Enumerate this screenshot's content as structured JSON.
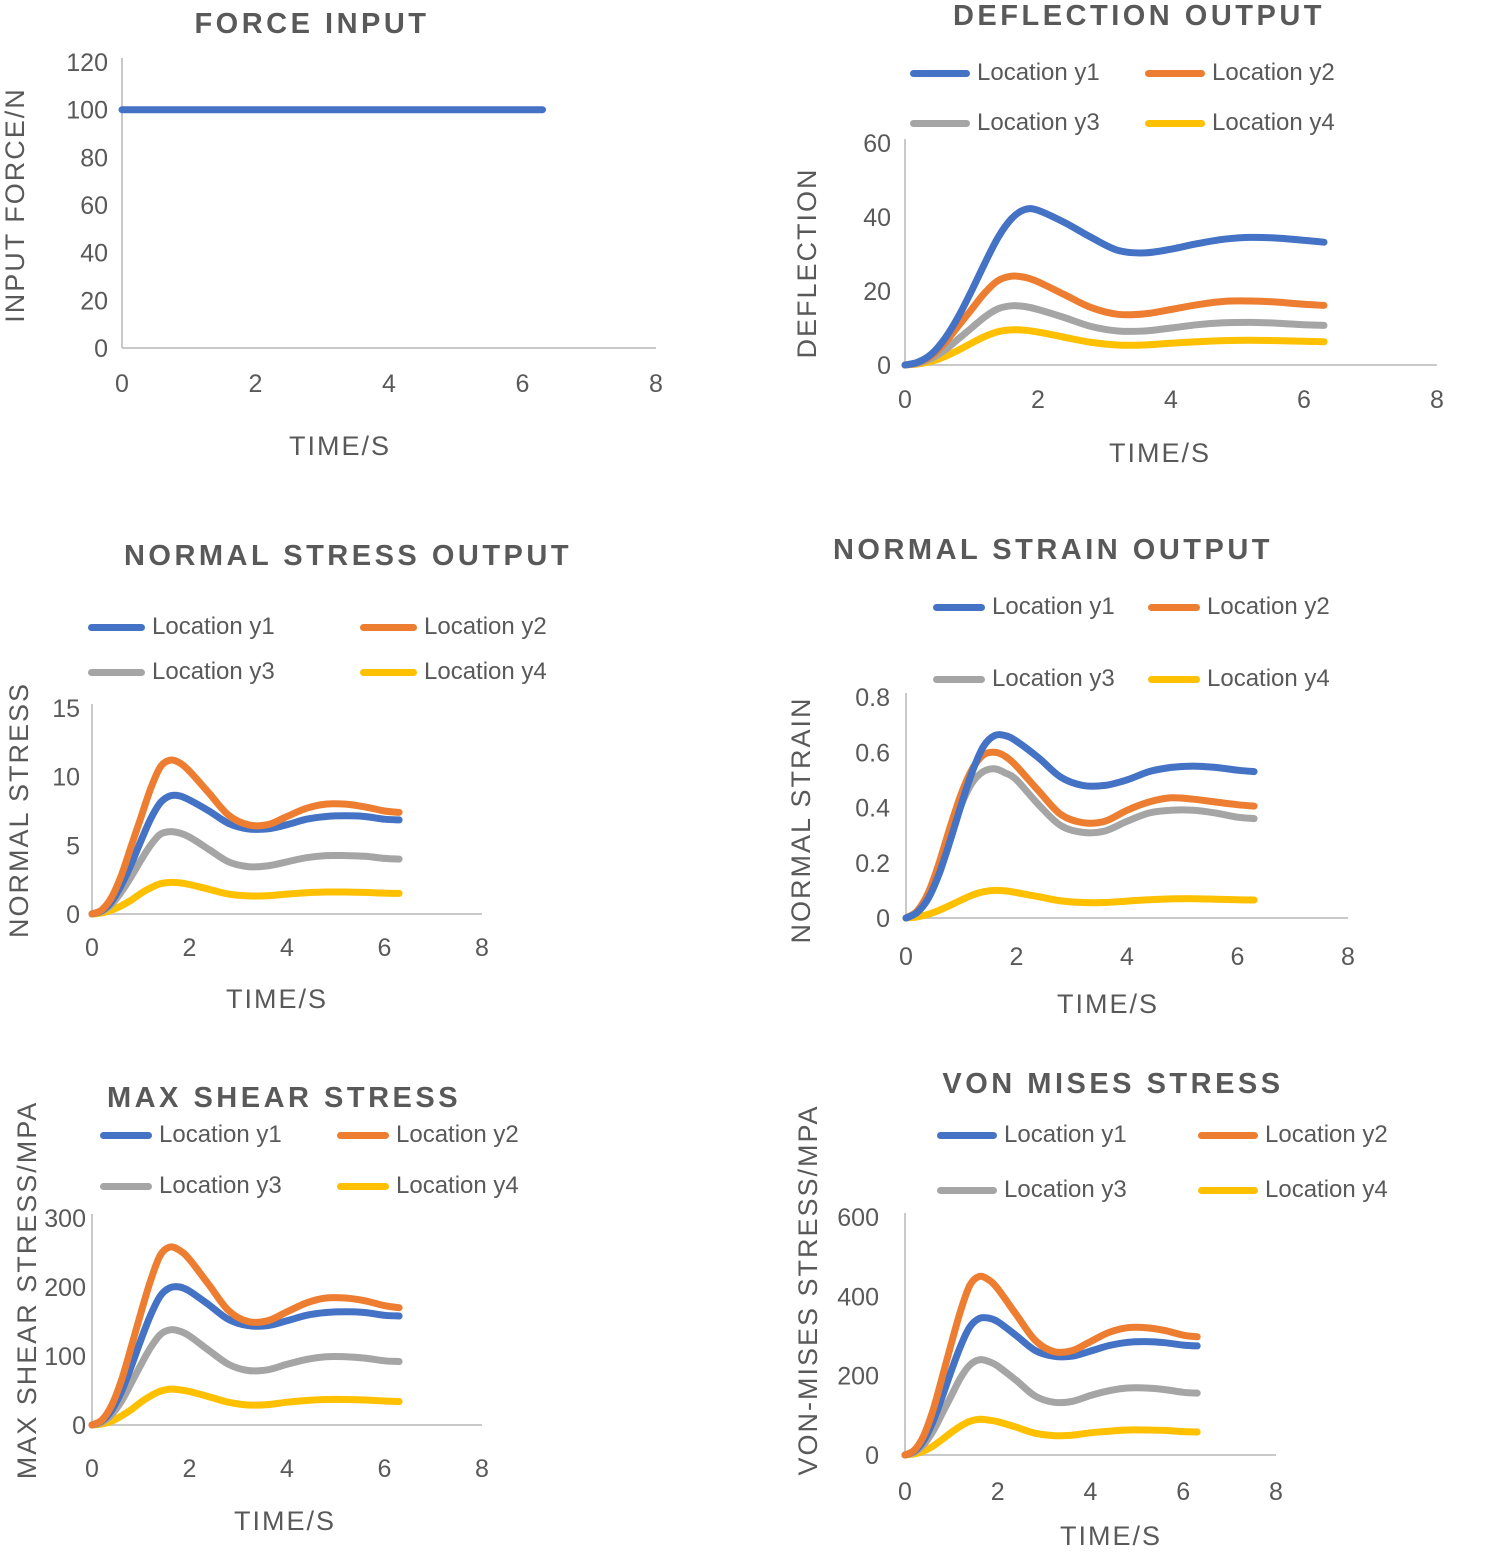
{
  "palette": {
    "series_blue": "#4472C4",
    "series_orange": "#ED7D31",
    "series_gray": "#A5A5A5",
    "series_yellow": "#FFC000",
    "text_gray": "#595959",
    "axis_line_gray": "#C9C9C9",
    "background": "#FFFFFF"
  },
  "chart_data": [
    {
      "type": "line",
      "title": "FORCE INPUT",
      "xlabel": "TIME/S",
      "ylabel": "INPUT FORCE/N",
      "xlim": [
        0,
        8
      ],
      "ylim": [
        0,
        120
      ],
      "xticks": [
        0,
        2,
        4,
        6,
        8
      ],
      "yticks": [
        0,
        20,
        40,
        60,
        80,
        100,
        120
      ],
      "grid": false,
      "legend": false,
      "x": [
        0,
        6.3
      ],
      "series": [
        {
          "name": "",
          "color": "#4472C4",
          "values": [
            100,
            100
          ]
        }
      ]
    },
    {
      "type": "line",
      "title": "DEFLECTION OUTPUT",
      "xlabel": "TIME/S",
      "ylabel": "DEFLECTION",
      "xlim": [
        0,
        8
      ],
      "ylim": [
        0,
        60
      ],
      "xticks": [
        0,
        2,
        4,
        6,
        8
      ],
      "yticks": [
        0,
        20,
        40,
        60
      ],
      "grid": false,
      "legend": true,
      "legend_position": "top",
      "x": [
        0,
        0.2,
        0.4,
        0.6,
        0.8,
        1,
        1.2,
        1.4,
        1.6,
        1.8,
        2,
        2.4,
        2.8,
        3.2,
        3.6,
        4,
        4.4,
        4.8,
        5.2,
        5.6,
        6,
        6.3
      ],
      "series": [
        {
          "name": "Location y1",
          "color": "#4472C4",
          "values": [
            0,
            0.8,
            3,
            7.2,
            13,
            20,
            27.5,
            34.5,
            39.5,
            42,
            41.8,
            38.5,
            34.5,
            31,
            30.3,
            31.3,
            32.8,
            34,
            34.5,
            34.3,
            33.7,
            33.2
          ]
        },
        {
          "name": "Location y2",
          "color": "#ED7D31",
          "values": [
            0,
            0.7,
            2.5,
            6,
            10.5,
            15,
            19.5,
            22.8,
            24,
            23.7,
            22.5,
            19,
            15.5,
            13.7,
            13.8,
            15,
            16.3,
            17.2,
            17.3,
            17,
            16.4,
            16.1
          ]
        },
        {
          "name": "Location y3",
          "color": "#A5A5A5",
          "values": [
            0,
            0.5,
            1.8,
            4,
            7,
            10,
            13,
            15.2,
            16,
            15.8,
            15,
            12.8,
            10.4,
            9.2,
            9.2,
            10,
            10.9,
            11.4,
            11.5,
            11.3,
            10.9,
            10.7
          ]
        },
        {
          "name": "Location y4",
          "color": "#FFC000",
          "values": [
            0,
            0.3,
            1,
            2.3,
            4,
            5.9,
            7.7,
            9,
            9.5,
            9.4,
            8.9,
            7.5,
            6.1,
            5.4,
            5.4,
            5.9,
            6.3,
            6.6,
            6.7,
            6.6,
            6.4,
            6.3
          ]
        }
      ]
    },
    {
      "type": "line",
      "title": "NORMAL STRESS OUTPUT",
      "xlabel": "TIME/S",
      "ylabel": "NORMAL STRESS",
      "xlim": [
        0,
        8
      ],
      "ylim": [
        0,
        15
      ],
      "xticks": [
        0,
        2,
        4,
        6,
        8
      ],
      "yticks": [
        0,
        5,
        10,
        15
      ],
      "grid": false,
      "legend": true,
      "legend_position": "top",
      "x": [
        0,
        0.2,
        0.4,
        0.6,
        0.8,
        1,
        1.2,
        1.4,
        1.6,
        1.8,
        2,
        2.4,
        2.8,
        3.2,
        3.6,
        4,
        4.4,
        4.8,
        5.2,
        5.6,
        6,
        6.3
      ],
      "series": [
        {
          "name": "Location y1",
          "color": "#4472C4",
          "values": [
            0,
            0.25,
            0.9,
            2.1,
            3.6,
            5.3,
            6.9,
            8.1,
            8.6,
            8.6,
            8.3,
            7.5,
            6.6,
            6.2,
            6.2,
            6.5,
            6.9,
            7.1,
            7.15,
            7.1,
            6.9,
            6.85
          ]
        },
        {
          "name": "Location y2",
          "color": "#ED7D31",
          "values": [
            0,
            0.3,
            1.2,
            2.8,
            4.9,
            7,
            9.1,
            10.7,
            11.2,
            11,
            10.4,
            8.8,
            7.2,
            6.5,
            6.5,
            7.1,
            7.7,
            8,
            8,
            7.8,
            7.5,
            7.4
          ]
        },
        {
          "name": "Location y3",
          "color": "#A5A5A5",
          "values": [
            0,
            0.2,
            0.7,
            1.6,
            2.7,
            3.9,
            5,
            5.8,
            6,
            5.9,
            5.6,
            4.7,
            3.8,
            3.45,
            3.5,
            3.8,
            4.1,
            4.25,
            4.25,
            4.2,
            4.05,
            4
          ]
        },
        {
          "name": "Location y4",
          "color": "#FFC000",
          "values": [
            0,
            0.08,
            0.28,
            0.6,
            1,
            1.5,
            1.9,
            2.2,
            2.3,
            2.27,
            2.15,
            1.8,
            1.45,
            1.32,
            1.33,
            1.45,
            1.55,
            1.6,
            1.6,
            1.57,
            1.52,
            1.5
          ]
        }
      ]
    },
    {
      "type": "line",
      "title": "NORMAL STRAIN OUTPUT",
      "xlabel": "TIME/S",
      "ylabel": "NORMAL STRAIN",
      "xlim": [
        0,
        8
      ],
      "ylim": [
        0,
        0.8
      ],
      "xticks": [
        0,
        2,
        4,
        6,
        8
      ],
      "yticks": [
        0,
        0.2,
        0.4,
        0.6,
        0.8
      ],
      "grid": false,
      "legend": true,
      "legend_position": "top",
      "x": [
        0,
        0.2,
        0.4,
        0.6,
        0.8,
        1,
        1.2,
        1.4,
        1.6,
        1.8,
        2,
        2.4,
        2.8,
        3.2,
        3.6,
        4,
        4.4,
        4.8,
        5.2,
        5.6,
        6,
        6.3
      ],
      "series": [
        {
          "name": "Location y1",
          "color": "#4472C4",
          "values": [
            0,
            0.02,
            0.07,
            0.16,
            0.28,
            0.41,
            0.53,
            0.62,
            0.66,
            0.66,
            0.64,
            0.58,
            0.51,
            0.48,
            0.48,
            0.5,
            0.53,
            0.545,
            0.55,
            0.545,
            0.535,
            0.53
          ]
        },
        {
          "name": "Location y2",
          "color": "#ED7D31",
          "values": [
            0,
            0.025,
            0.09,
            0.2,
            0.33,
            0.45,
            0.54,
            0.59,
            0.6,
            0.585,
            0.55,
            0.46,
            0.375,
            0.345,
            0.35,
            0.39,
            0.42,
            0.435,
            0.43,
            0.42,
            0.41,
            0.405
          ]
        },
        {
          "name": "Location y3",
          "color": "#A5A5A5",
          "values": [
            0,
            0.022,
            0.08,
            0.18,
            0.3,
            0.41,
            0.49,
            0.53,
            0.54,
            0.525,
            0.5,
            0.41,
            0.335,
            0.31,
            0.315,
            0.35,
            0.38,
            0.39,
            0.39,
            0.38,
            0.365,
            0.36
          ]
        },
        {
          "name": "Location y4",
          "color": "#FFC000",
          "values": [
            0,
            0.004,
            0.013,
            0.028,
            0.046,
            0.065,
            0.083,
            0.095,
            0.1,
            0.098,
            0.092,
            0.077,
            0.062,
            0.056,
            0.056,
            0.061,
            0.066,
            0.069,
            0.07,
            0.068,
            0.066,
            0.065
          ]
        }
      ]
    },
    {
      "type": "line",
      "title": "MAX SHEAR STRESS",
      "xlabel": "TIME/S",
      "ylabel": "MAX SHEAR STRESS/MPA",
      "xlim": [
        0,
        8
      ],
      "ylim": [
        0,
        300
      ],
      "xticks": [
        0,
        2,
        4,
        6,
        8
      ],
      "yticks": [
        0,
        100,
        200,
        300
      ],
      "grid": false,
      "legend": true,
      "legend_position": "top",
      "x": [
        0,
        0.2,
        0.4,
        0.6,
        0.8,
        1,
        1.2,
        1.4,
        1.6,
        1.8,
        2,
        2.4,
        2.8,
        3.2,
        3.6,
        4,
        4.4,
        4.8,
        5.2,
        5.6,
        6,
        6.3
      ],
      "series": [
        {
          "name": "Location y1",
          "color": "#4472C4",
          "values": [
            0,
            6,
            21,
            48,
            84,
            123,
            159,
            187,
            199,
            200,
            194,
            174,
            153,
            144,
            144,
            151,
            159,
            163,
            164,
            163,
            159,
            158
          ]
        },
        {
          "name": "Location y2",
          "color": "#ED7D31",
          "values": [
            0,
            7,
            28,
            64,
            112,
            162,
            209,
            246,
            258,
            253,
            240,
            203,
            166,
            150,
            151,
            164,
            177,
            184,
            184,
            180,
            173,
            170
          ]
        },
        {
          "name": "Location y3",
          "color": "#A5A5A5",
          "values": [
            0,
            4,
            15,
            34,
            60,
            87,
            112,
            131,
            138,
            136,
            129,
            108,
            88,
            79,
            80,
            88,
            95,
            99,
            99,
            97,
            93,
            92
          ]
        },
        {
          "name": "Location y4",
          "color": "#FFC000",
          "values": [
            0,
            1.5,
            5.5,
            13,
            22,
            33,
            42,
            49,
            52,
            51,
            48.5,
            41,
            33,
            29,
            29.5,
            33,
            35.5,
            37,
            37,
            36.3,
            34.8,
            34
          ]
        }
      ]
    },
    {
      "type": "line",
      "title": "VON MISES STRESS",
      "xlabel": "TIME/S",
      "ylabel": "VON-MISES STRESS/MPA",
      "xlim": [
        0,
        8
      ],
      "ylim": [
        0,
        600
      ],
      "xticks": [
        0,
        2,
        4,
        6,
        8
      ],
      "yticks": [
        0,
        200,
        400,
        600
      ],
      "grid": false,
      "legend": true,
      "legend_position": "top",
      "x": [
        0,
        0.2,
        0.4,
        0.6,
        0.8,
        1,
        1.2,
        1.4,
        1.6,
        1.8,
        2,
        2.4,
        2.8,
        3.2,
        3.6,
        4,
        4.4,
        4.8,
        5.2,
        5.6,
        6,
        6.3
      ],
      "series": [
        {
          "name": "Location y1",
          "color": "#4472C4",
          "values": [
            0,
            10,
            36,
            83,
            146,
            213,
            275,
            323,
            344,
            345,
            336,
            301,
            264,
            249,
            249,
            262,
            276,
            284,
            286,
            283,
            277,
            275
          ]
        },
        {
          "name": "Location y2",
          "color": "#ED7D31",
          "values": [
            0,
            12,
            48,
            111,
            195,
            282,
            364,
            428,
            450,
            442,
            419,
            354,
            290,
            261,
            263,
            286,
            309,
            321,
            321,
            314,
            302,
            298
          ]
        },
        {
          "name": "Location y3",
          "color": "#A5A5A5",
          "values": [
            0,
            7,
            26,
            59,
            104,
            150,
            195,
            227,
            240,
            236,
            224,
            188,
            149,
            133,
            135,
            150,
            162,
            169,
            169,
            165,
            158,
            156
          ]
        },
        {
          "name": "Location y4",
          "color": "#FFC000",
          "values": [
            0,
            2.5,
            9.5,
            22,
            39,
            57,
            73,
            85,
            90,
            88,
            84,
            70,
            55,
            49,
            50,
            56,
            60,
            63,
            63,
            62,
            59,
            58
          ]
        }
      ]
    }
  ]
}
